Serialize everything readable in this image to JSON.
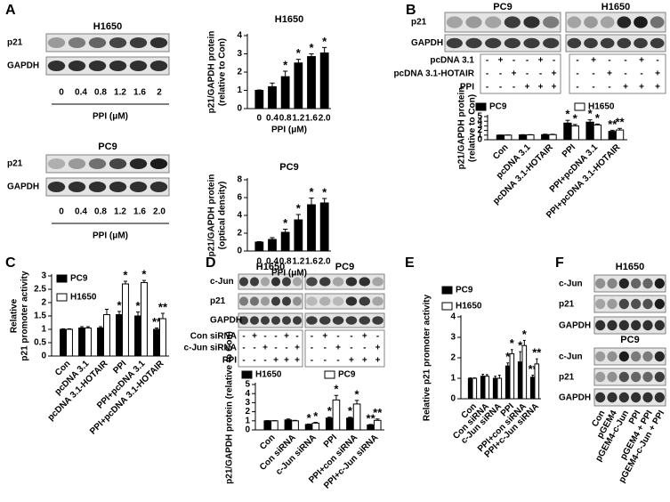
{
  "panel_labels": [
    "A",
    "B",
    "C",
    "D",
    "E",
    "F"
  ],
  "blots": [
    {
      "title": "H1650",
      "rows": [
        "p21",
        "GAPDH"
      ],
      "lanes": [
        "0",
        "0.4",
        "0.8",
        "1.2",
        "1.6",
        "2"
      ],
      "xlabel": "PPI (μM)"
    },
    {
      "title": "PC9",
      "rows": [
        "p21",
        "GAPDH"
      ],
      "lanes": [
        "0",
        "0.4",
        "0.8",
        "1.2",
        "1.6",
        "2.0"
      ],
      "xlabel": "PPI (μM)"
    },
    {
      "titles": [
        "PC9",
        "H1650"
      ],
      "rows": [
        "p21",
        "GAPDH"
      ],
      "conditions": [
        {
          "name": "pcDNA 3.1",
          "signs": [
            "-",
            "+",
            "-",
            "-",
            "+",
            "-",
            "-",
            "+",
            "-",
            "-",
            "+",
            "-"
          ]
        },
        {
          "name": "pcDNA 3.1-HOTAIR",
          "signs": [
            "-",
            "-",
            "+",
            "-",
            "-",
            "+",
            "-",
            "-",
            "+",
            "-",
            "-",
            "+"
          ]
        },
        {
          "name": "PPI",
          "signs": [
            "-",
            "-",
            "-",
            "+",
            "+",
            "+",
            "-",
            "-",
            "-",
            "+",
            "+",
            "+"
          ]
        }
      ]
    },
    {
      "titles": [
        "H1650",
        "PC9"
      ],
      "rows": [
        "c-Jun",
        "p21",
        "GAPDH"
      ],
      "conditions": [
        {
          "name": "Con siRNA",
          "signs": [
            "-",
            "+",
            "-",
            "-",
            "+",
            "-",
            "-",
            "+",
            "-",
            "-",
            "+",
            "-"
          ]
        },
        {
          "name": "c-Jun siRNA",
          "signs": [
            "-",
            "-",
            "+",
            "-",
            "-",
            "+",
            "-",
            "-",
            "+",
            "-",
            "-",
            "+"
          ]
        },
        {
          "name": "PPI",
          "signs": [
            "-",
            "-",
            "-",
            "+",
            "+",
            "+",
            "-",
            "-",
            "-",
            "+",
            "+",
            "+"
          ]
        }
      ]
    },
    {
      "panels": [
        {
          "title": "H1650",
          "rows": [
            "c-Jun",
            "p21",
            "GAPDH"
          ]
        },
        {
          "title": "PC9",
          "rows": [
            "c-Jun",
            "p21",
            "GAPDH"
          ]
        }
      ],
      "lanes": [
        "Con",
        "pGEM4",
        "pGEM4-c-Jun",
        "PPI",
        "pGEM4 + PPI",
        "pGEM4-c-Jun + PPI"
      ]
    }
  ],
  "chart_data": [
    {
      "type": "bar",
      "title": "H1650",
      "categories": [
        "0",
        "0.4",
        "0.8",
        "1.2",
        "1.6",
        "2.0"
      ],
      "values": [
        1,
        1.2,
        1.75,
        2.5,
        2.85,
        3.05
      ],
      "errors": [
        0.02,
        0.2,
        0.3,
        0.2,
        0.15,
        0.3
      ],
      "sig_labels": [
        null,
        null,
        "*",
        "*",
        "*",
        "*"
      ],
      "color": "#000000",
      "ylim": [
        0,
        4
      ],
      "yticks": [
        0,
        1,
        2,
        3,
        4
      ],
      "xlabel": "PPI (μM)",
      "ylabel": [
        "p21/GAPDH protein",
        "(relative to Con)"
      ]
    },
    {
      "type": "bar",
      "title": "PC9",
      "categories": [
        "0",
        "0.4",
        "0.8",
        "1.2",
        "1.6",
        "2.0"
      ],
      "values": [
        1,
        1.3,
        2.1,
        3.5,
        5.2,
        5.4
      ],
      "errors": [
        0.05,
        0.2,
        0.35,
        0.6,
        0.75,
        0.5
      ],
      "sig_labels": [
        null,
        null,
        "*",
        "*",
        "*",
        "*"
      ],
      "color": "#000000",
      "ylim": [
        0,
        8
      ],
      "yticks": [
        0,
        2,
        4,
        6,
        8
      ],
      "xlabel": "PPI (μM)",
      "ylabel": [
        "p21/GAPDH protein",
        "(optical density)"
      ]
    },
    {
      "type": "grouped_bar",
      "categories": [
        "Con",
        "pcDNA 3.1",
        "pcDNA 3.1-HOTAIR",
        "PPI",
        "PPI+pcDNA 3.1",
        "PPI+pcDNA 3.1-HOTAIR"
      ],
      "series": [
        {
          "name": "PC9",
          "color": "#000000",
          "values": [
            1,
            1.05,
            1.1,
            3.6,
            3.8,
            1.8
          ],
          "errors": [
            0.02,
            0.05,
            0.1,
            0.6,
            0.5,
            0.25
          ],
          "sig_labels": [
            null,
            null,
            null,
            "*",
            "*",
            "**"
          ]
        },
        {
          "name": "H1650",
          "color": "#ffffff",
          "values": [
            1,
            1.05,
            1.1,
            3.0,
            3.2,
            2.1
          ],
          "errors": [
            0.02,
            0.05,
            0.08,
            0.3,
            0.2,
            0.35
          ],
          "sig_labels": [
            null,
            null,
            null,
            "*",
            "*",
            "**"
          ]
        }
      ],
      "ylim": [
        0,
        5
      ],
      "yticks": [
        0,
        1,
        2,
        3,
        4,
        5
      ],
      "ylabel": [
        "p21/GAPDH protein",
        "(relative to Con)"
      ]
    },
    {
      "type": "grouped_bar",
      "categories": [
        "Con",
        "pcDNA 3.1",
        "pcDNA 3.1-HOTAIR",
        "PPI",
        "PPI+pcDNA 3.1",
        "PPI+pcDNA 3.1-HOTAIR"
      ],
      "series": [
        {
          "name": "PC9",
          "color": "#000000",
          "values": [
            1,
            1.05,
            1.05,
            1.55,
            1.5,
            1.0
          ],
          "errors": [
            0.02,
            0.05,
            0.05,
            0.12,
            0.15,
            0.05
          ],
          "sig_labels": [
            null,
            null,
            null,
            "*",
            "*",
            "**"
          ]
        },
        {
          "name": "H1650",
          "color": "#ffffff",
          "values": [
            1,
            1.05,
            1.55,
            2.7,
            2.75,
            1.4
          ],
          "errors": [
            0.02,
            0.05,
            0.2,
            0.1,
            0.08,
            0.2
          ],
          "sig_labels": [
            null,
            null,
            null,
            "*",
            "*",
            "**"
          ]
        }
      ],
      "ylim": [
        0,
        3
      ],
      "yticks": [
        0,
        0.5,
        1,
        1.5,
        2,
        2.5,
        3
      ],
      "ylabel": [
        "Relative",
        "p21 promoter activity"
      ]
    },
    {
      "type": "grouped_bar",
      "categories": [
        "Con",
        "Con siRNA",
        "c-Jun siRNA",
        "PPI",
        "PPI+con siRNA",
        "PPI+c-Jun siRNA"
      ],
      "series": [
        {
          "name": "H1650",
          "color": "#000000",
          "values": [
            1,
            1.1,
            0.6,
            1.3,
            1.3,
            0.55
          ],
          "errors": [
            0.02,
            0.1,
            0.05,
            0.1,
            0.1,
            0.05
          ],
          "sig_labels": [
            null,
            null,
            "*",
            "*",
            "*",
            "**"
          ]
        },
        {
          "name": "PC9",
          "color": "#ffffff",
          "values": [
            1,
            1.0,
            0.75,
            3.3,
            2.85,
            1.05
          ],
          "errors": [
            0.02,
            0.05,
            0.08,
            0.5,
            0.4,
            0.15
          ],
          "sig_labels": [
            null,
            null,
            "*",
            "*",
            "*",
            "**"
          ]
        }
      ],
      "ylim": [
        0,
        5
      ],
      "yticks": [
        0,
        1,
        2,
        3,
        4,
        5
      ],
      "ylabel": [
        "p21/GAPDH protein (relative to Con)"
      ]
    },
    {
      "type": "grouped_bar",
      "categories": [
        "Con",
        "Con siRNA",
        "c-Jun siRNA",
        "PPI",
        "PPI+con siRNA",
        "PPI+c-Jun siRNA"
      ],
      "series": [
        {
          "name": "PC9",
          "color": "#000000",
          "values": [
            1,
            1.1,
            1.0,
            1.6,
            1.8,
            1.05
          ],
          "errors": [
            0.02,
            0.1,
            0.1,
            0.15,
            0.5,
            0.1
          ],
          "sig_labels": [
            null,
            null,
            null,
            "*",
            "*",
            "**"
          ]
        },
        {
          "name": "H1650",
          "color": "#ffffff",
          "values": [
            1,
            1.1,
            1.0,
            2.2,
            2.6,
            1.7
          ],
          "errors": [
            0.02,
            0.08,
            0.15,
            0.2,
            0.25,
            0.25
          ],
          "sig_labels": [
            null,
            null,
            null,
            "*",
            "*",
            "**"
          ]
        }
      ],
      "ylim": [
        0,
        4
      ],
      "yticks": [
        0,
        1,
        2,
        3,
        4
      ],
      "ylabel": [
        "Relative p21 promoter activity"
      ]
    }
  ]
}
